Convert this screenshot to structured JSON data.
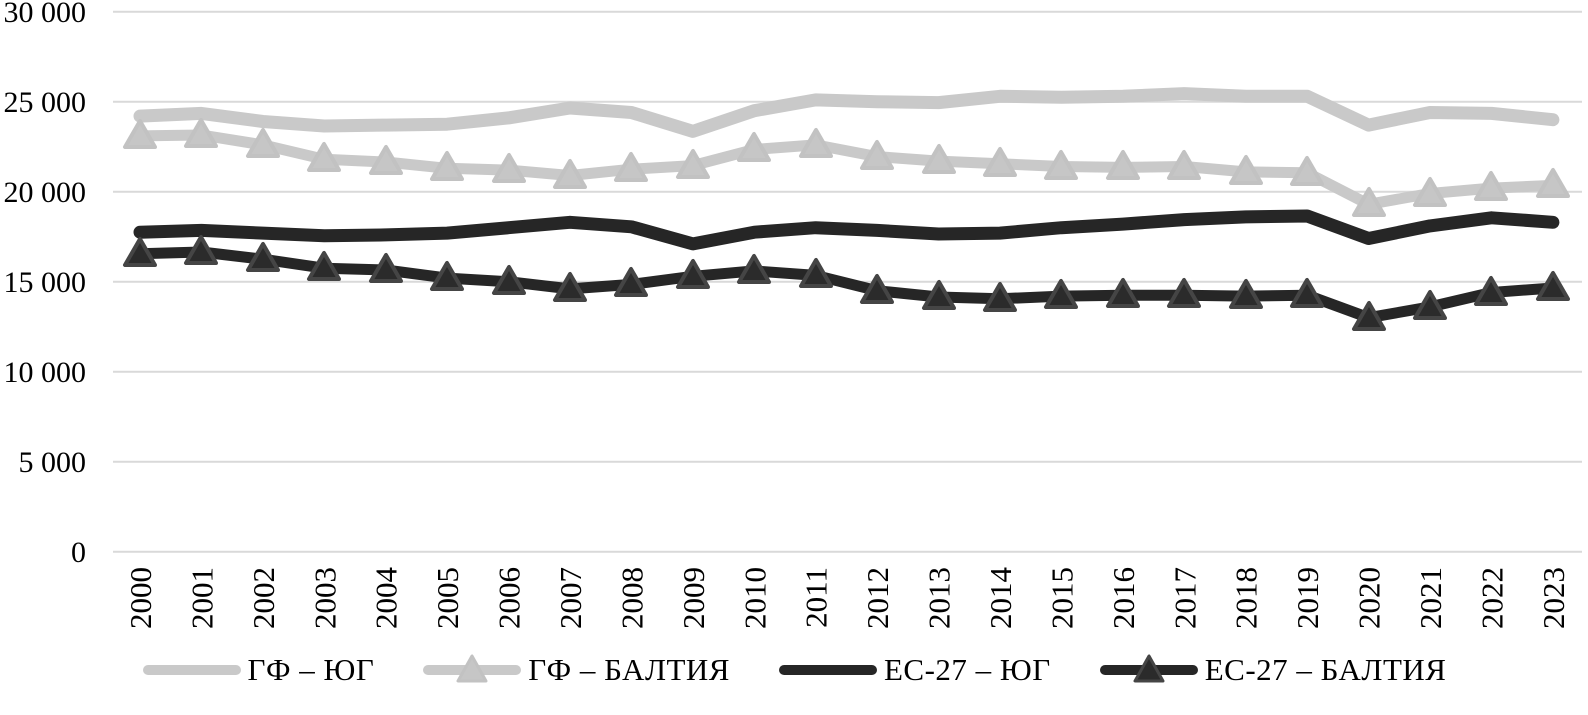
{
  "chart_data": {
    "type": "line",
    "title": "",
    "xlabel": "",
    "ylabel": "",
    "x_categories": [
      "2000",
      "2001",
      "2002",
      "2003",
      "2004",
      "2005",
      "2006",
      "2007",
      "2008",
      "2009",
      "2010",
      "2011",
      "2012",
      "2013",
      "2014",
      "2015",
      "2016",
      "2017",
      "2018",
      "2019",
      "2020",
      "2021",
      "2022",
      "2023"
    ],
    "ylim": [
      0,
      30000
    ],
    "y_tick_step": 5000,
    "y_ticks": [
      {
        "value": 0,
        "label": "0"
      },
      {
        "value": 5000,
        "label": "5 000"
      },
      {
        "value": 10000,
        "label": "10 000"
      },
      {
        "value": 15000,
        "label": "15 000"
      },
      {
        "value": 20000,
        "label": "20 000"
      },
      {
        "value": 25000,
        "label": "25 000"
      },
      {
        "value": 30000,
        "label": "30 000"
      }
    ],
    "grid": "horizontal",
    "legend_position": "bottom",
    "series": [
      {
        "name": "ГФ – ЮГ",
        "color": "#C9C9C9",
        "marker": "none",
        "line_width": 13,
        "values": [
          24200,
          24350,
          23900,
          23650,
          23700,
          23750,
          24100,
          24650,
          24400,
          23350,
          24500,
          25100,
          25000,
          24950,
          25300,
          25250,
          25300,
          25450,
          25300,
          25300,
          23700,
          24400,
          24350,
          24000
        ]
      },
      {
        "name": "ГФ – БАЛТИЯ",
        "color": "#C9C9C9",
        "marker": "triangle",
        "marker_fill": "#C6C6C6",
        "marker_stroke": "#C2C2C2",
        "line_width": 11,
        "values": [
          23100,
          23150,
          22600,
          21800,
          21650,
          21300,
          21200,
          20900,
          21250,
          21450,
          22350,
          22600,
          21950,
          21700,
          21550,
          21400,
          21350,
          21400,
          21100,
          21050,
          19300,
          19900,
          20200,
          20350
        ]
      },
      {
        "name": "ЕС-27 – ЮГ",
        "color": "#262626",
        "marker": "none",
        "line_width": 13,
        "values": [
          17750,
          17850,
          17700,
          17550,
          17600,
          17700,
          18000,
          18300,
          18050,
          17100,
          17750,
          18000,
          17850,
          17650,
          17700,
          18000,
          18200,
          18450,
          18600,
          18650,
          17400,
          18100,
          18550,
          18300
        ]
      },
      {
        "name": "ЕС-27 – БАЛТИЯ",
        "color": "#262626",
        "marker": "triangle",
        "marker_fill": "#2B2B2B",
        "marker_stroke": "#454545",
        "line_width": 11,
        "values": [
          16550,
          16650,
          16250,
          15750,
          15650,
          15200,
          15000,
          14600,
          14850,
          15300,
          15600,
          15350,
          14500,
          14150,
          14050,
          14200,
          14250,
          14250,
          14200,
          14250,
          13000,
          13600,
          14400,
          14650
        ]
      }
    ],
    "colors": {
      "gridline": "#D9D9D9",
      "text": "#000000",
      "background": "#FFFFFF"
    }
  }
}
